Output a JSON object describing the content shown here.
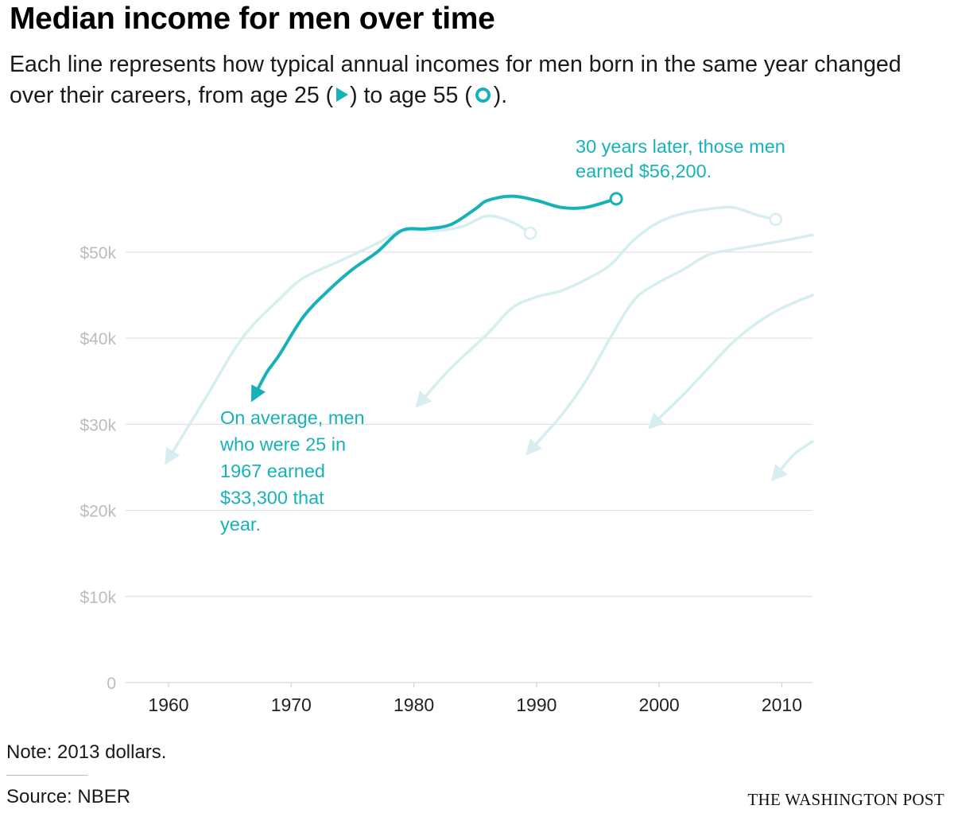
{
  "header": {
    "title": "Median income for men over time",
    "subtitle_pre": "Each line represents how typical annual incomes for men born in the same year changed over their careers, from age 25 (",
    "subtitle_mid": ") to age 55 (",
    "subtitle_post": ")."
  },
  "footer": {
    "note": "Note: 2013 dollars.",
    "source": "Source: NBER",
    "brand": "THE WASHINGTON POST"
  },
  "colors": {
    "highlight": "#17b2b8",
    "faded": "#d6eef0",
    "grid": "#dddddd",
    "axis_text": "#bcbcbc"
  },
  "chart_data": {
    "type": "line",
    "title": "Median income for men over time",
    "xlim": [
      1956.5,
      2012.5
    ],
    "ylim": [
      0,
      56000
    ],
    "x_ticks": [
      1960,
      1970,
      1980,
      1990,
      2000,
      2010
    ],
    "y_ticks": [
      {
        "value": 0,
        "label": "0"
      },
      {
        "value": 10000,
        "label": "$10k"
      },
      {
        "value": 20000,
        "label": "$20k"
      },
      {
        "value": 30000,
        "label": "$30k"
      },
      {
        "value": 40000,
        "label": "$40k"
      },
      {
        "value": 50000,
        "label": "$50k"
      }
    ],
    "grid": true,
    "start_marker": "triangle (age 25)",
    "end_marker": "circle (age 55)",
    "series": [
      {
        "highlight": false,
        "open_end": false,
        "points": [
          [
            1960,
            26000
          ],
          [
            1963,
            33000
          ],
          [
            1966,
            40000
          ],
          [
            1969,
            44500
          ],
          [
            1971,
            47000
          ],
          [
            1974,
            49000
          ],
          [
            1977,
            51000
          ],
          [
            1979,
            52500
          ],
          [
            1982,
            52500
          ],
          [
            1984,
            53000
          ],
          [
            1986,
            54200
          ],
          [
            1988,
            53500
          ],
          [
            1989.5,
            52200
          ]
        ]
      },
      {
        "highlight": true,
        "open_end": false,
        "points": [
          [
            1967,
            33300
          ],
          [
            1968,
            36000
          ],
          [
            1969,
            38000
          ],
          [
            1971,
            42500
          ],
          [
            1973,
            45500
          ],
          [
            1975,
            48000
          ],
          [
            1977,
            50000
          ],
          [
            1979,
            52500
          ],
          [
            1981,
            52700
          ],
          [
            1983,
            53200
          ],
          [
            1985,
            55000
          ],
          [
            1986,
            56000
          ],
          [
            1988,
            56500
          ],
          [
            1990,
            56000
          ],
          [
            1992,
            55200
          ],
          [
            1994,
            55200
          ],
          [
            1996.5,
            56200
          ]
        ]
      },
      {
        "highlight": false,
        "open_end": false,
        "points": [
          [
            1980.5,
            32500
          ],
          [
            1983,
            36500
          ],
          [
            1986,
            40500
          ],
          [
            1988,
            43500
          ],
          [
            1990,
            44800
          ],
          [
            1992,
            45500
          ],
          [
            1994,
            46800
          ],
          [
            1996,
            48500
          ],
          [
            1998,
            51500
          ],
          [
            2000,
            53500
          ],
          [
            2002,
            54500
          ],
          [
            2004,
            55000
          ],
          [
            2006,
            55200
          ],
          [
            2008,
            54300
          ],
          [
            2009.5,
            53800
          ]
        ]
      },
      {
        "highlight": false,
        "open_end": true,
        "points": [
          [
            1989.5,
            27000
          ],
          [
            1992,
            31000
          ],
          [
            1994,
            35000
          ],
          [
            1996,
            40000
          ],
          [
            1998,
            44500
          ],
          [
            2000,
            46500
          ],
          [
            2002,
            48000
          ],
          [
            2004,
            49700
          ],
          [
            2006,
            50300
          ],
          [
            2008,
            50800
          ],
          [
            2010,
            51300
          ],
          [
            2012.5,
            52000
          ]
        ]
      },
      {
        "highlight": false,
        "open_end": true,
        "points": [
          [
            1999.5,
            30000
          ],
          [
            2002,
            33500
          ],
          [
            2004,
            36500
          ],
          [
            2006,
            39500
          ],
          [
            2008,
            41800
          ],
          [
            2010,
            43500
          ],
          [
            2012.5,
            45000
          ]
        ]
      },
      {
        "highlight": false,
        "open_end": true,
        "points": [
          [
            2009.5,
            24000
          ],
          [
            2011,
            26500
          ],
          [
            2012.5,
            28000
          ]
        ]
      }
    ],
    "annotations": [
      {
        "lines": [
          "On average, men",
          "who were 25 in",
          "1967 earned",
          "$33,300 that",
          "year."
        ],
        "anchor": [
          1967,
          33300
        ]
      },
      {
        "lines": [
          "30 years later, those men",
          "earned $56,200."
        ],
        "anchor": [
          1996.5,
          56200
        ]
      }
    ]
  }
}
